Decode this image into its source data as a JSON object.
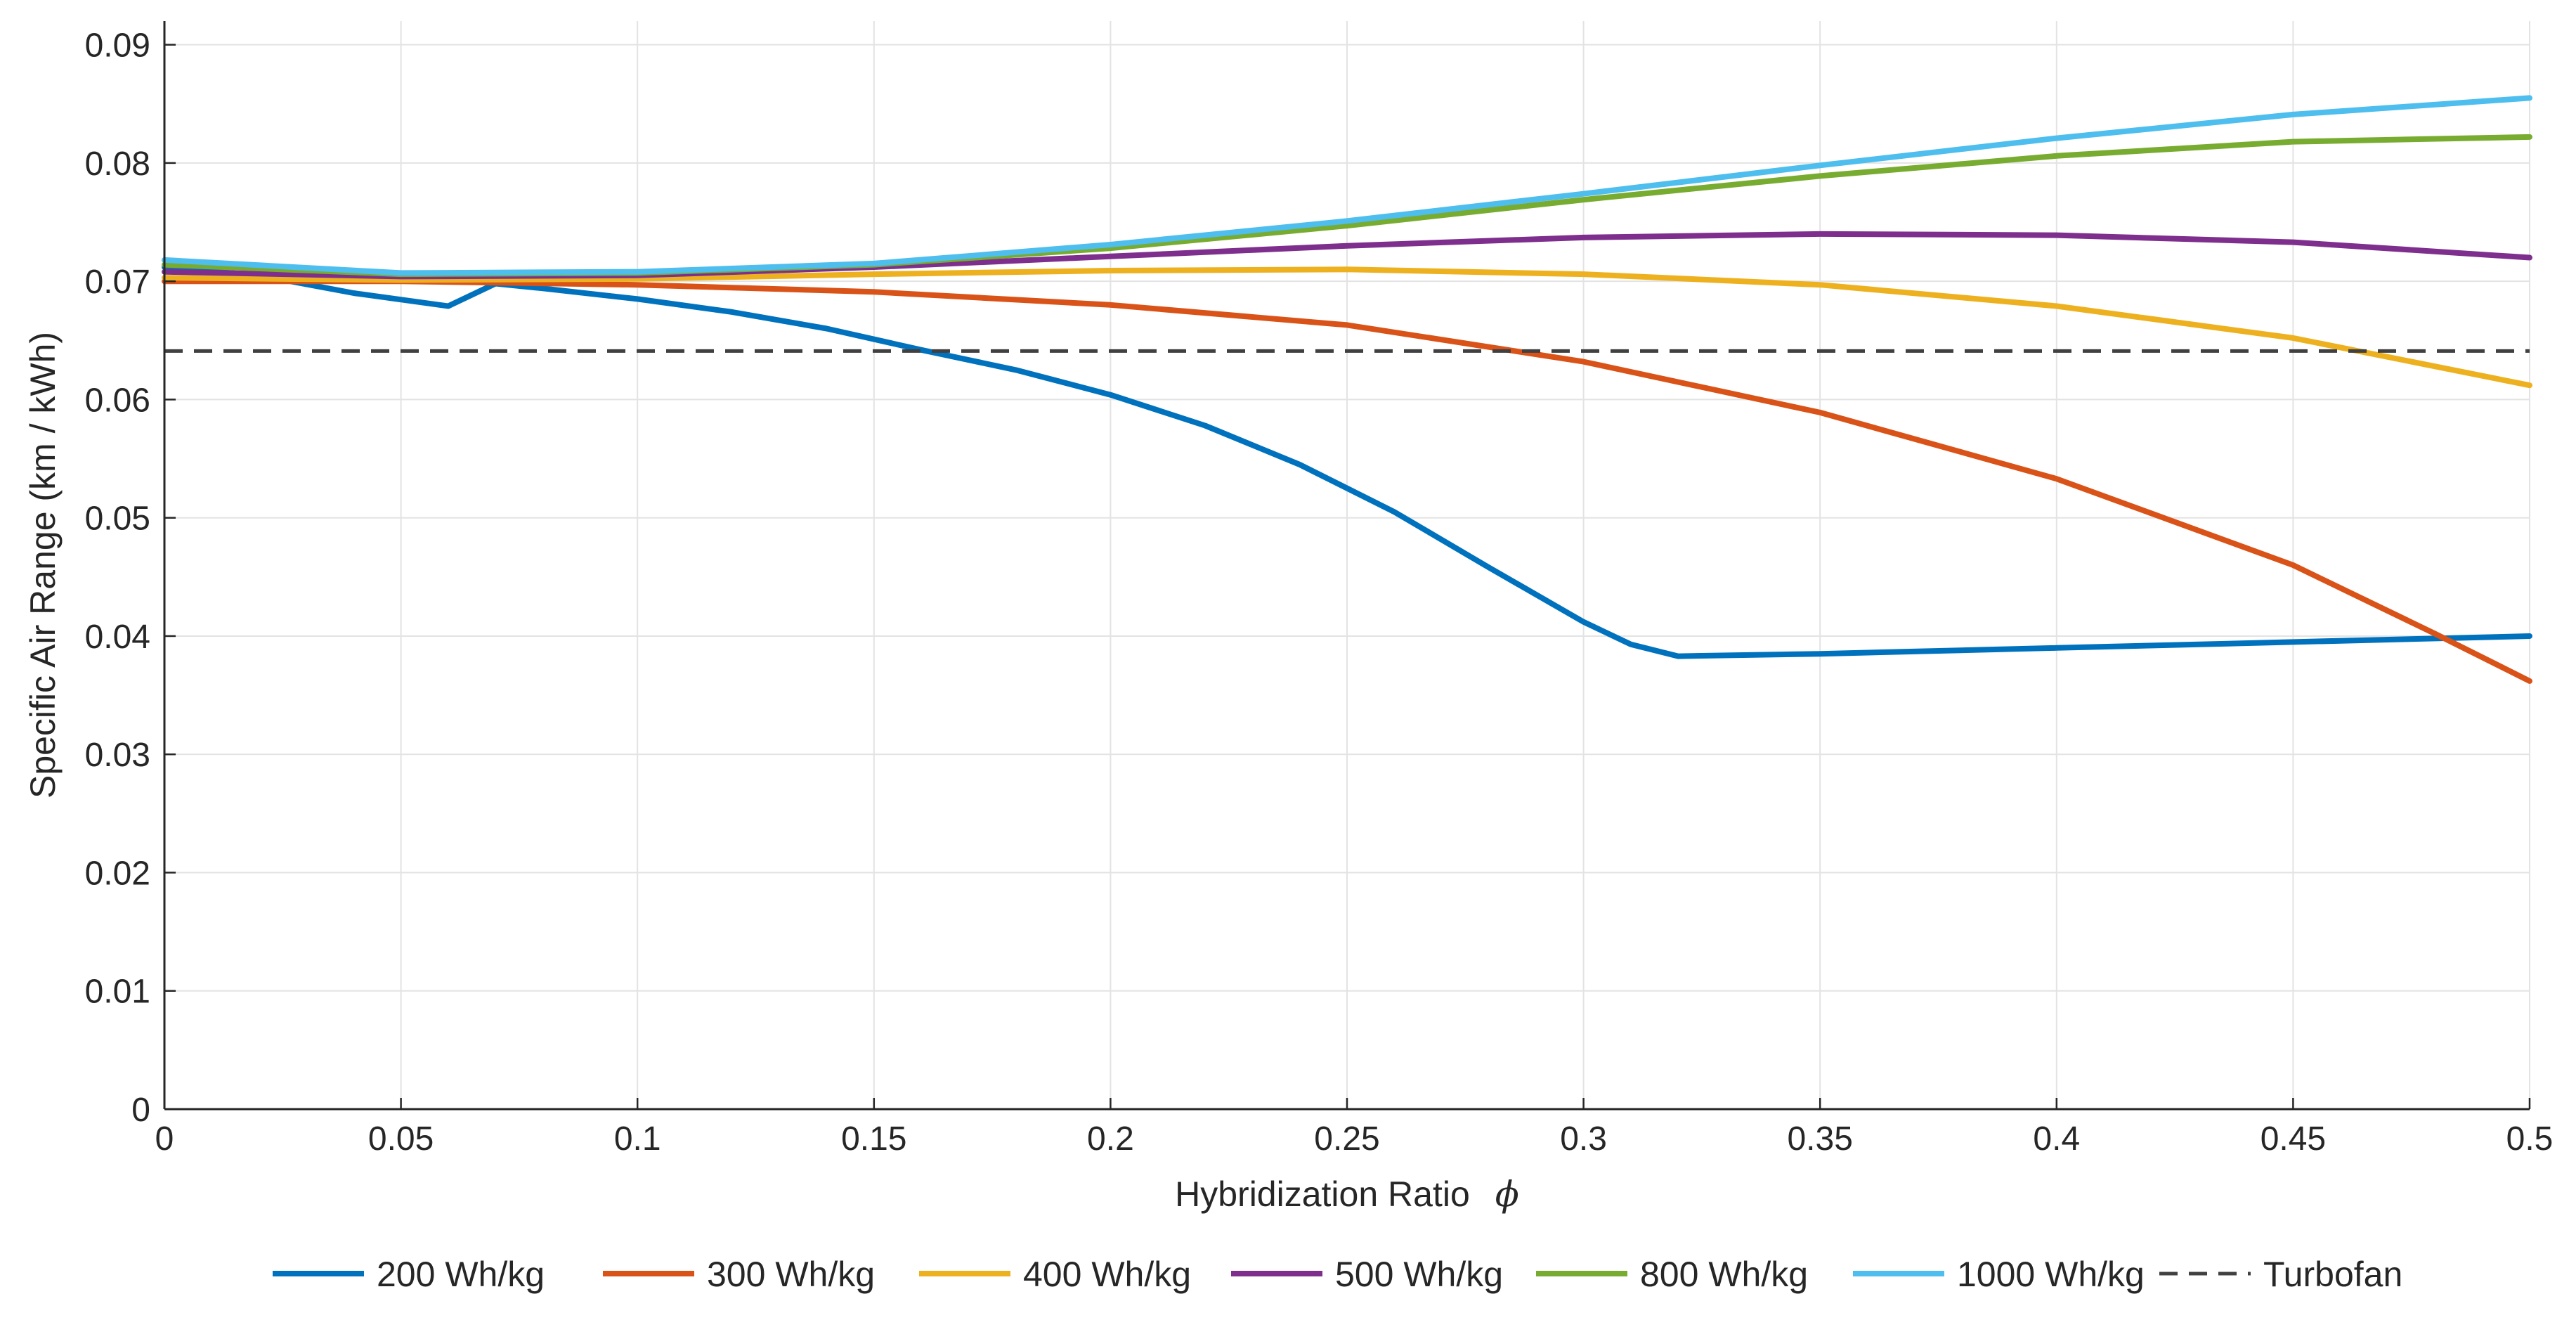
{
  "chart_data": {
    "type": "line",
    "title": "",
    "xlabel": "Hybridization  Ratio",
    "xlabel_symbol": "ϕ",
    "ylabel": "Specific Air Range  (km / kWh)",
    "xlim": [
      0,
      0.5
    ],
    "ylim": [
      0,
      0.092
    ],
    "grid": true,
    "legend_position": "bottom-outside",
    "xticks": [
      0,
      0.05,
      0.1,
      0.15,
      0.2,
      0.25,
      0.3,
      0.35,
      0.4,
      0.45,
      0.5
    ],
    "xtick_labels": [
      "0",
      "0.05",
      "0.1",
      "0.15",
      "0.2",
      "0.25",
      "0.3",
      "0.35",
      "0.4",
      "0.45",
      "0.5"
    ],
    "yticks": [
      0,
      0.01,
      0.02,
      0.03,
      0.04,
      0.05,
      0.06,
      0.07,
      0.08,
      0.09
    ],
    "ytick_labels": [
      "0",
      "0.01",
      "0.02",
      "0.03",
      "0.04",
      "0.05",
      "0.06",
      "0.07",
      "0.08",
      "0.09"
    ],
    "series": [
      {
        "name": "200 Wh/kg",
        "color": "#0072BD",
        "dash": false,
        "x": [
          0,
          0.02,
          0.04,
          0.06,
          0.07,
          0.08,
          0.1,
          0.12,
          0.14,
          0.16,
          0.18,
          0.2,
          0.22,
          0.24,
          0.26,
          0.28,
          0.3,
          0.31,
          0.32,
          0.35,
          0.4,
          0.45,
          0.5
        ],
        "y": [
          0.0712,
          0.0705,
          0.069,
          0.0679,
          0.0698,
          0.0694,
          0.0685,
          0.0674,
          0.066,
          0.0642,
          0.0625,
          0.0604,
          0.0578,
          0.0545,
          0.0505,
          0.0458,
          0.0412,
          0.0393,
          0.0383,
          0.0385,
          0.039,
          0.0395,
          0.04
        ]
      },
      {
        "name": "300 Wh/kg",
        "color": "#D95319",
        "dash": false,
        "x": [
          0,
          0.05,
          0.1,
          0.15,
          0.2,
          0.25,
          0.3,
          0.35,
          0.4,
          0.45,
          0.48,
          0.5
        ],
        "y": [
          0.07,
          0.07,
          0.0697,
          0.0691,
          0.068,
          0.0663,
          0.0632,
          0.0589,
          0.0533,
          0.046,
          0.0402,
          0.0362
        ]
      },
      {
        "name": "400 Wh/kg",
        "color": "#EDB120",
        "dash": false,
        "x": [
          0,
          0.05,
          0.1,
          0.15,
          0.2,
          0.25,
          0.3,
          0.35,
          0.4,
          0.45,
          0.5
        ],
        "y": [
          0.0703,
          0.0701,
          0.0702,
          0.0706,
          0.0709,
          0.071,
          0.0706,
          0.0697,
          0.0679,
          0.0652,
          0.0612
        ]
      },
      {
        "name": "500 Wh/kg",
        "color": "#7E2F8E",
        "dash": false,
        "x": [
          0,
          0.05,
          0.1,
          0.15,
          0.2,
          0.25,
          0.3,
          0.35,
          0.4,
          0.45,
          0.5
        ],
        "y": [
          0.0708,
          0.0704,
          0.0705,
          0.0712,
          0.0721,
          0.073,
          0.0737,
          0.074,
          0.0739,
          0.0733,
          0.072
        ]
      },
      {
        "name": "800 Wh/kg",
        "color": "#77AC30",
        "dash": false,
        "x": [
          0,
          0.05,
          0.1,
          0.15,
          0.2,
          0.25,
          0.3,
          0.35,
          0.4,
          0.45,
          0.5
        ],
        "y": [
          0.0714,
          0.0706,
          0.0707,
          0.0714,
          0.0728,
          0.0747,
          0.0769,
          0.0789,
          0.0806,
          0.0818,
          0.0822
        ]
      },
      {
        "name": "1000 Wh/kg",
        "color": "#4DBEEE",
        "dash": false,
        "x": [
          0,
          0.05,
          0.1,
          0.15,
          0.2,
          0.25,
          0.3,
          0.35,
          0.4,
          0.45,
          0.5
        ],
        "y": [
          0.0718,
          0.0707,
          0.0708,
          0.0715,
          0.0731,
          0.0751,
          0.0774,
          0.0798,
          0.0821,
          0.0841,
          0.0855
        ]
      },
      {
        "name": "Turbofan",
        "color": "#404040",
        "dash": true,
        "x": [
          0,
          0.5
        ],
        "y": [
          0.0641,
          0.0641
        ]
      }
    ]
  }
}
